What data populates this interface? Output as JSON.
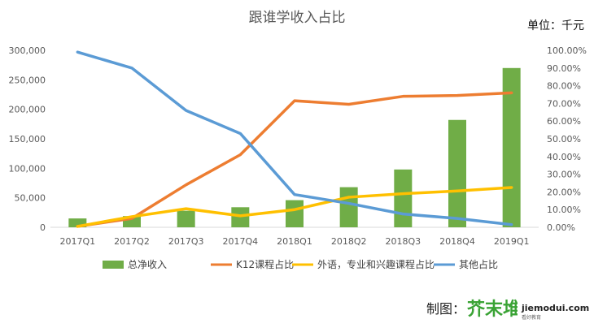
{
  "chart_data": {
    "type": "bar",
    "title": "跟谁学收入占比",
    "unit_label": "单位：千元",
    "categories": [
      "2017Q1",
      "2017Q2",
      "2017Q3",
      "2017Q4",
      "2018Q1",
      "2018Q2",
      "2018Q3",
      "2018Q4",
      "2019Q1"
    ],
    "y_left": {
      "range": [
        0,
        300000
      ],
      "ticks": [
        "0",
        "50,000",
        "100,000",
        "150,000",
        "200,000",
        "250,000",
        "300,000"
      ]
    },
    "y_right": {
      "range": [
        0,
        100
      ],
      "ticks": [
        "0.00%",
        "10.00%",
        "20.00%",
        "30.00%",
        "40.00%",
        "50.00%",
        "60.00%",
        "70.00%",
        "80.00%",
        "90.00%",
        "100.00%"
      ]
    },
    "grid": false,
    "legend_position": "bottom",
    "series": [
      {
        "name": "总净收入",
        "kind": "bar",
        "axis": "left",
        "color": "#70ad47",
        "values": [
          15000,
          19000,
          28000,
          34000,
          46000,
          68000,
          98000,
          182000,
          270000
        ]
      },
      {
        "name": "K12课程占比",
        "kind": "line",
        "axis": "right",
        "color": "#ed7d31",
        "values": [
          0.5,
          5,
          24,
          41,
          71.5,
          69.5,
          74,
          74.5,
          76
        ]
      },
      {
        "name": "外语，专业和兴趣课程占比",
        "kind": "line",
        "axis": "right",
        "color": "#ffc000",
        "values": [
          0.5,
          6,
          10.5,
          6.5,
          10,
          17,
          19,
          20.5,
          22.5
        ]
      },
      {
        "name": "其他占比",
        "kind": "line",
        "axis": "right",
        "color": "#5b9bd5",
        "values": [
          99,
          90,
          66,
          53,
          18.5,
          13.5,
          7.5,
          5,
          1.5
        ]
      }
    ]
  },
  "credit": {
    "label": "制图：",
    "logo_text": "芥末堆",
    "logo_domain": "jiemodui.com",
    "logo_tagline": "看好教育"
  }
}
